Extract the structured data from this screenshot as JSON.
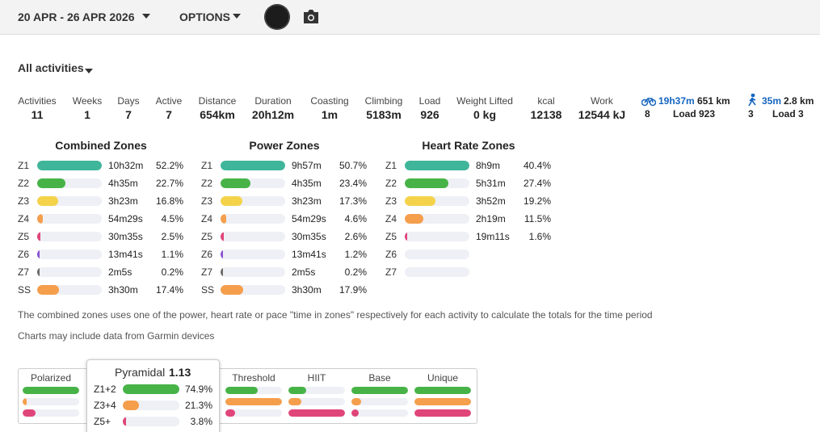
{
  "header": {
    "date_range": "20 APR - 26 APR 2026",
    "options": "OPTIONS"
  },
  "filter": "All activities",
  "stats": [
    {
      "label": "Activities",
      "value": "11"
    },
    {
      "label": "Weeks",
      "value": "1"
    },
    {
      "label": "Days",
      "value": "7"
    },
    {
      "label": "Active",
      "value": "7"
    },
    {
      "label": "Distance",
      "value": "654km"
    },
    {
      "label": "Duration",
      "value": "20h12m"
    },
    {
      "label": "Coasting",
      "value": "1m"
    },
    {
      "label": "Climbing",
      "value": "5183m"
    },
    {
      "label": "Load",
      "value": "926"
    },
    {
      "label": "Weight Lifted",
      "value": "0 kg"
    },
    {
      "label": "kcal",
      "value": "12138"
    },
    {
      "label": "Work",
      "value": "12544 kJ"
    }
  ],
  "sports": [
    {
      "time": "19h37m",
      "distance": "651 km",
      "count": "8",
      "load": "Load 923"
    },
    {
      "time": "35m",
      "distance": "2.8 km",
      "count": "3",
      "load": "Load 3"
    }
  ],
  "zones": [
    {
      "title": "Combined Zones",
      "rows": [
        {
          "zone": "Z1",
          "time": "10h32m",
          "value": 52.2,
          "label": "52.2%"
        },
        {
          "zone": "Z2",
          "time": "4h35m",
          "value": 22.7,
          "label": "22.7%"
        },
        {
          "zone": "Z3",
          "time": "3h23m",
          "value": 16.8,
          "label": "16.8%"
        },
        {
          "zone": "Z4",
          "time": "54m29s",
          "value": 4.5,
          "label": "4.5%"
        },
        {
          "zone": "Z5",
          "time": "30m35s",
          "value": 2.5,
          "label": "2.5%"
        },
        {
          "zone": "Z6",
          "time": "13m41s",
          "value": 1.1,
          "label": "1.1%"
        },
        {
          "zone": "Z7",
          "time": "2m5s",
          "value": 0.2,
          "label": "0.2%"
        },
        {
          "zone": "SS",
          "time": "3h30m",
          "value": 17.4,
          "label": "17.4%"
        }
      ]
    },
    {
      "title": "Power Zones",
      "rows": [
        {
          "zone": "Z1",
          "time": "9h57m",
          "value": 50.7,
          "label": "50.7%"
        },
        {
          "zone": "Z2",
          "time": "4h35m",
          "value": 23.4,
          "label": "23.4%"
        },
        {
          "zone": "Z3",
          "time": "3h23m",
          "value": 17.3,
          "label": "17.3%"
        },
        {
          "zone": "Z4",
          "time": "54m29s",
          "value": 4.6,
          "label": "4.6%"
        },
        {
          "zone": "Z5",
          "time": "30m35s",
          "value": 2.6,
          "label": "2.6%"
        },
        {
          "zone": "Z6",
          "time": "13m41s",
          "value": 1.2,
          "label": "1.2%"
        },
        {
          "zone": "Z7",
          "time": "2m5s",
          "value": 0.2,
          "label": "0.2%"
        },
        {
          "zone": "SS",
          "time": "3h30m",
          "value": 17.9,
          "label": "17.9%"
        }
      ]
    },
    {
      "title": "Heart Rate Zones",
      "rows": [
        {
          "zone": "Z1",
          "time": "8h9m",
          "value": 40.4,
          "label": "40.4%"
        },
        {
          "zone": "Z2",
          "time": "5h31m",
          "value": 27.4,
          "label": "27.4%"
        },
        {
          "zone": "Z3",
          "time": "3h52m",
          "value": 19.2,
          "label": "19.2%"
        },
        {
          "zone": "Z4",
          "time": "2h19m",
          "value": 11.5,
          "label": "11.5%"
        },
        {
          "zone": "Z5",
          "time": "19m11s",
          "value": 1.6,
          "label": "1.6%"
        },
        {
          "zone": "Z6"
        },
        {
          "zone": "Z7"
        }
      ]
    }
  ],
  "notes": [
    "The combined zones uses one of the power, heart rate or pace \"time in zones\" respectively for each activity to calculate the totals for the time period",
    "Charts may include data from Garmin devices"
  ],
  "distributions": [
    {
      "name": "Polarized",
      "values": [
        80,
        6,
        18
      ]
    },
    {
      "name": "Threshold",
      "values": [
        40,
        70,
        12
      ]
    },
    {
      "name": "HIIT",
      "values": [
        20,
        15,
        65
      ]
    },
    {
      "name": "Base",
      "values": [
        75,
        13,
        10
      ]
    },
    {
      "name": "Unique",
      "values": [
        33,
        33,
        33
      ]
    }
  ],
  "tooltip": {
    "name": "Pyramidal",
    "score": 1.13,
    "rows": [
      {
        "zone": "Z1+2",
        "value": 74.9,
        "label": "74.9%"
      },
      {
        "zone": "Z3+4",
        "value": 21.3,
        "label": "21.3%"
      },
      {
        "zone": "Z5+",
        "value": 3.8,
        "label": "3.8%"
      }
    ]
  }
}
